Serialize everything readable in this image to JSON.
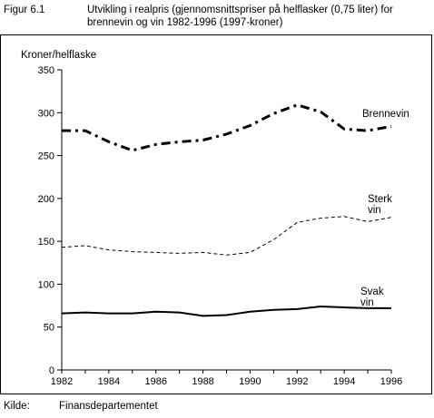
{
  "figure": {
    "label": "Figur 6.1",
    "title": "Utvikling i realpris (gjennomsnittspriser på helflasker (0,75 liter) for",
    "subtitle": "brennevin og vin 1982-1996 (1997-kroner)"
  },
  "source": {
    "label": "Kilde:",
    "value": "Finansdepartementet"
  },
  "chart_data": {
    "type": "line",
    "title": "",
    "ylabel": "Kroner/helflaske",
    "xlabel": "",
    "xlim": [
      1982,
      1996
    ],
    "ylim": [
      0,
      350
    ],
    "xticks": [
      1982,
      1984,
      1986,
      1988,
      1990,
      1992,
      1994,
      1996
    ],
    "yticks": [
      0,
      50,
      100,
      150,
      200,
      250,
      300,
      350
    ],
    "grid": false,
    "legend": "none",
    "x": [
      1982,
      1983,
      1984,
      1985,
      1986,
      1987,
      1988,
      1989,
      1990,
      1991,
      1992,
      1993,
      1994,
      1995,
      1996
    ],
    "series": [
      {
        "name": "Brennevin",
        "label_lines": [
          "Brennevin"
        ],
        "style": "dash-dot",
        "color": "#000000",
        "values": [
          279,
          279,
          266,
          256,
          263,
          266,
          268,
          275,
          285,
          299,
          309,
          301,
          281,
          279,
          284
        ]
      },
      {
        "name": "Sterk vin",
        "label_lines": [
          "Sterk",
          "vin"
        ],
        "style": "dashed",
        "color": "#000000",
        "values": [
          143,
          145,
          140,
          138,
          137,
          136,
          137,
          134,
          137,
          152,
          172,
          177,
          179,
          173,
          178
        ]
      },
      {
        "name": "Svak vin",
        "label_lines": [
          "Svak",
          "vin"
        ],
        "style": "solid",
        "color": "#000000",
        "values": [
          66,
          67,
          66,
          66,
          68,
          67,
          63,
          64,
          68,
          70,
          71,
          74,
          73,
          72,
          72
        ]
      }
    ]
  }
}
